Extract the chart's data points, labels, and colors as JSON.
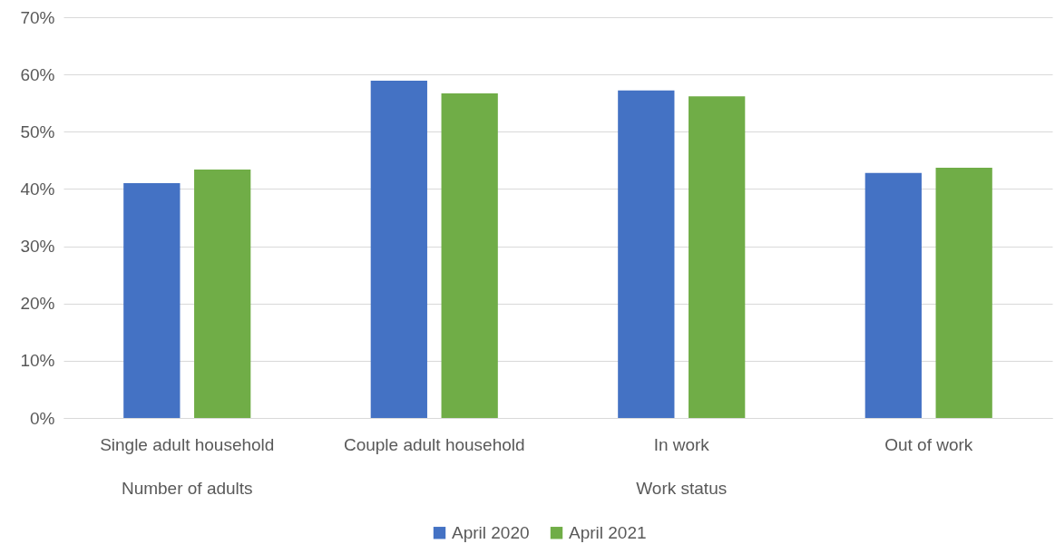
{
  "chart_data": {
    "type": "bar",
    "categories": [
      "Single adult household",
      "Couple adult household",
      "In work",
      "Out of work"
    ],
    "series": [
      {
        "name": "April 2020",
        "color": "#4472c4",
        "values": [
          41.0,
          58.9,
          57.2,
          42.8
        ]
      },
      {
        "name": "April 2021",
        "color": "#70ad47",
        "values": [
          43.4,
          56.7,
          56.2,
          43.7
        ]
      }
    ],
    "ylim": [
      0,
      70
    ],
    "yticks": [
      {
        "value": 0,
        "label": "0%"
      },
      {
        "value": 10,
        "label": "10%"
      },
      {
        "value": 20,
        "label": "20%"
      },
      {
        "value": 30,
        "label": "30%"
      },
      {
        "value": 40,
        "label": "40%"
      },
      {
        "value": 50,
        "label": "50%"
      },
      {
        "value": 60,
        "label": "60%"
      },
      {
        "value": 70,
        "label": "70%"
      }
    ],
    "annotations": [
      "Number of adults",
      "Work status"
    ],
    "grid": "y",
    "legend": "bottom"
  }
}
